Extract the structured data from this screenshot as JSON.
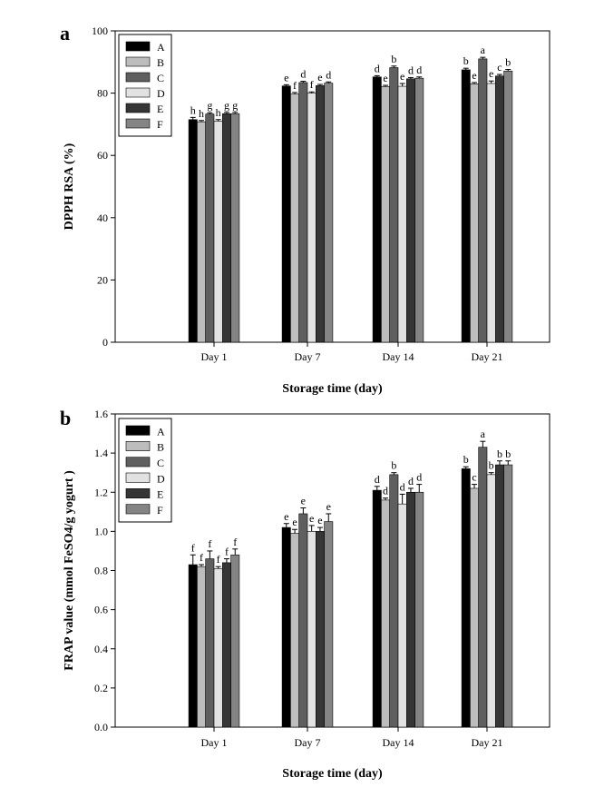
{
  "chart_data": [
    {
      "type": "bar",
      "panel_label": "a",
      "title": "",
      "xlabel": "Storage time (day)",
      "ylabel": "DPPH RSA (%)",
      "ylim": [
        0,
        100
      ],
      "yticks": [
        "0",
        "20",
        "40",
        "60",
        "80",
        "100"
      ],
      "categories": [
        "Day 1",
        "Day 7",
        "Day 14",
        "Day 21"
      ],
      "legend_position": "top-left",
      "series": [
        {
          "name": "A",
          "color": "#000000",
          "values": [
            71.5,
            82.3,
            85.2,
            87.5
          ],
          "errors": [
            0.7,
            0.4,
            0.4,
            0.5
          ],
          "letters": [
            "h",
            "e",
            "d",
            "b"
          ]
        },
        {
          "name": "B",
          "color": "#bdbdbd",
          "values": [
            70.8,
            79.7,
            82.1,
            83.0
          ],
          "errors": [
            0.4,
            0.5,
            0.4,
            0.4
          ],
          "letters": [
            "h",
            "f",
            "e",
            "e"
          ]
        },
        {
          "name": "C",
          "color": "#5f5f5f",
          "values": [
            73.3,
            83.4,
            88.2,
            91.0
          ],
          "errors": [
            0.4,
            0.4,
            0.5,
            0.5
          ],
          "letters": [
            "g",
            "d",
            "b",
            "a"
          ]
        },
        {
          "name": "D",
          "color": "#e2e2e2",
          "values": [
            71.0,
            80.0,
            82.2,
            83.1
          ],
          "errors": [
            0.5,
            0.4,
            0.9,
            0.8
          ],
          "letters": [
            "h",
            "f",
            "e",
            "e"
          ]
        },
        {
          "name": "E",
          "color": "#363636",
          "values": [
            73.4,
            82.4,
            84.6,
            85.5
          ],
          "errors": [
            0.4,
            0.4,
            0.4,
            0.5
          ],
          "letters": [
            "g",
            "e",
            "d",
            "c"
          ]
        },
        {
          "name": "F",
          "color": "#848484",
          "values": [
            73.4,
            83.2,
            84.8,
            87.1
          ],
          "errors": [
            0.4,
            0.4,
            0.4,
            0.5
          ],
          "letters": [
            "g",
            "d",
            "d",
            "b"
          ]
        }
      ]
    },
    {
      "type": "bar",
      "panel_label": "b",
      "title": "",
      "xlabel": "Storage time (day)",
      "ylabel": "FRAP value (mmol FeSO4/g yogurt )",
      "ylim": [
        0,
        1.6
      ],
      "yticks": [
        "0.0",
        "0.2",
        "0.4",
        "0.6",
        "0.8",
        "1.0",
        "1.2",
        "1.4",
        "1.6"
      ],
      "categories": [
        "Day 1",
        "Day 7",
        "Day 14",
        "Day 21"
      ],
      "legend_position": "top-left",
      "series": [
        {
          "name": "A",
          "color": "#000000",
          "values": [
            0.83,
            1.02,
            1.21,
            1.32
          ],
          "errors": [
            0.05,
            0.02,
            0.02,
            0.01
          ],
          "letters": [
            "f",
            "e",
            "d",
            "b"
          ]
        },
        {
          "name": "B",
          "color": "#bdbdbd",
          "values": [
            0.82,
            0.99,
            1.16,
            1.22
          ],
          "errors": [
            0.01,
            0.02,
            0.01,
            0.02
          ],
          "letters": [
            "f",
            "e",
            "d",
            "c"
          ]
        },
        {
          "name": "C",
          "color": "#5f5f5f",
          "values": [
            0.86,
            1.09,
            1.29,
            1.43
          ],
          "errors": [
            0.04,
            0.03,
            0.01,
            0.03
          ],
          "letters": [
            "f",
            "e",
            "b",
            "a"
          ]
        },
        {
          "name": "D",
          "color": "#e2e2e2",
          "values": [
            0.81,
            1.0,
            1.14,
            1.29
          ],
          "errors": [
            0.01,
            0.03,
            0.05,
            0.01
          ],
          "letters": [
            "f",
            "e",
            "d",
            "b"
          ]
        },
        {
          "name": "E",
          "color": "#363636",
          "values": [
            0.84,
            1.0,
            1.2,
            1.34
          ],
          "errors": [
            0.02,
            0.02,
            0.02,
            0.02
          ],
          "letters": [
            "f",
            "e",
            "d",
            "b"
          ]
        },
        {
          "name": "F",
          "color": "#848484",
          "values": [
            0.88,
            1.05,
            1.2,
            1.34
          ],
          "errors": [
            0.03,
            0.04,
            0.04,
            0.02
          ],
          "letters": [
            "f",
            "e",
            "d",
            "b"
          ]
        }
      ]
    }
  ]
}
